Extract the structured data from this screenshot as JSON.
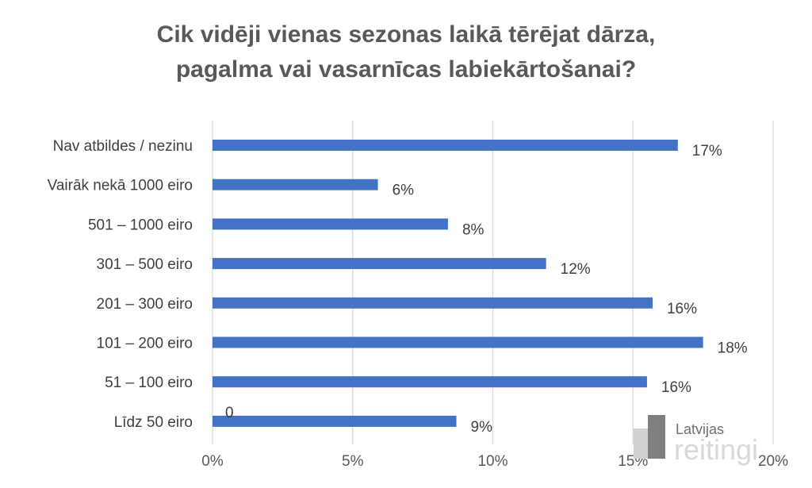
{
  "chart_data": {
    "type": "bar",
    "orientation": "horizontal",
    "title_lines": [
      "Cik vidēji vienas sezonas laikā tērējat dārza,",
      "pagalma vai vasarnīcas labiekārtošanai?"
    ],
    "categories": [
      "Nav atbildes / nezinu",
      "Vairāk nekā 1000 eiro",
      "501 – 1000 eiro",
      "301 – 500 eiro",
      "201 – 300 eiro",
      "101 – 200 eiro",
      "51 – 100 eiro",
      "Līdz 50 eiro"
    ],
    "values": [
      16.6,
      5.9,
      8.4,
      11.9,
      15.7,
      17.5,
      15.5,
      8.7
    ],
    "data_labels": [
      "17%",
      "6%",
      "8%",
      "12%",
      "16%",
      "18%",
      "16%",
      "9%"
    ],
    "extra_annotation": "0",
    "xlim": [
      0,
      20
    ],
    "xticks": [
      0,
      5,
      10,
      15,
      20
    ],
    "xtick_labels": [
      "0%",
      "5%",
      "10%",
      "15%",
      "20%"
    ],
    "grid": "vertical",
    "bar_color": "#4472C4",
    "legend": "none"
  },
  "watermark": {
    "line1": "Latvijas",
    "line2": "reitingi"
  }
}
